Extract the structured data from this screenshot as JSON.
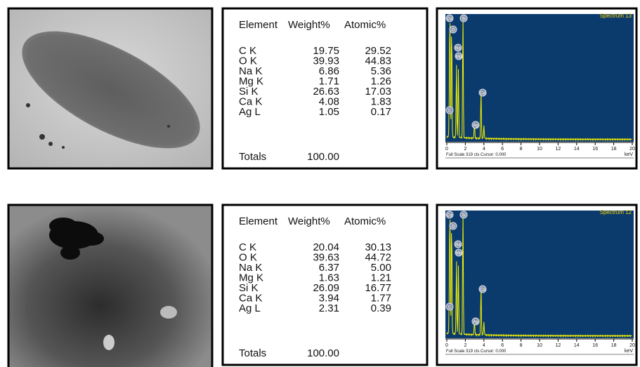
{
  "panels": [
    {
      "table": {
        "headers": [
          "Element",
          "Weight%",
          "Atomic%"
        ],
        "rows": [
          [
            "C K",
            "19.75",
            "29.52"
          ],
          [
            "O K",
            "39.93",
            "44.83"
          ],
          [
            "Na K",
            "6.86",
            "5.36"
          ],
          [
            "Mg K",
            "1.71",
            "1.26"
          ],
          [
            "Si K",
            "26.63",
            "17.03"
          ],
          [
            "Ca K",
            "4.08",
            "1.83"
          ],
          [
            "Ag L",
            "1.05",
            "0.17"
          ]
        ],
        "totals": [
          "Totals",
          "100.00"
        ]
      },
      "spectrum": {
        "title": "Spectrum 13",
        "peak_labels": [
          "Ca",
          "Si",
          "O",
          "Na",
          "Mg",
          "Ca",
          "C",
          "Ag"
        ],
        "x_ticks": [
          "0",
          "2",
          "4",
          "6",
          "8",
          "10",
          "12",
          "14",
          "16",
          "18",
          "20"
        ],
        "unit": "keV",
        "footer": "Full Scale 319 cts Cursor: 0.000"
      }
    },
    {
      "table": {
        "headers": [
          "Element",
          "Weight%",
          "Atomic%"
        ],
        "rows": [
          [
            "C K",
            "20.04",
            "30.13"
          ],
          [
            "O K",
            "39.63",
            "44.72"
          ],
          [
            "Na K",
            "6.37",
            "5.00"
          ],
          [
            "Mg K",
            "1.63",
            "1.21"
          ],
          [
            "Si K",
            "26.09",
            "16.77"
          ],
          [
            "Ca K",
            "3.94",
            "1.77"
          ],
          [
            "Ag L",
            "2.31",
            "0.39"
          ]
        ],
        "totals": [
          "Totals",
          "100.00"
        ]
      },
      "spectrum": {
        "title": "Spectrum 12",
        "peak_labels": [
          "Ca",
          "Si",
          "O",
          "Na",
          "Mg",
          "Ca",
          "C",
          "Ag"
        ],
        "x_ticks": [
          "0",
          "2",
          "4",
          "6",
          "8",
          "10",
          "12",
          "14",
          "16",
          "18",
          "20"
        ],
        "unit": "keV",
        "footer": "Full Scale 319 cts Cursor: 0.000"
      }
    }
  ]
}
